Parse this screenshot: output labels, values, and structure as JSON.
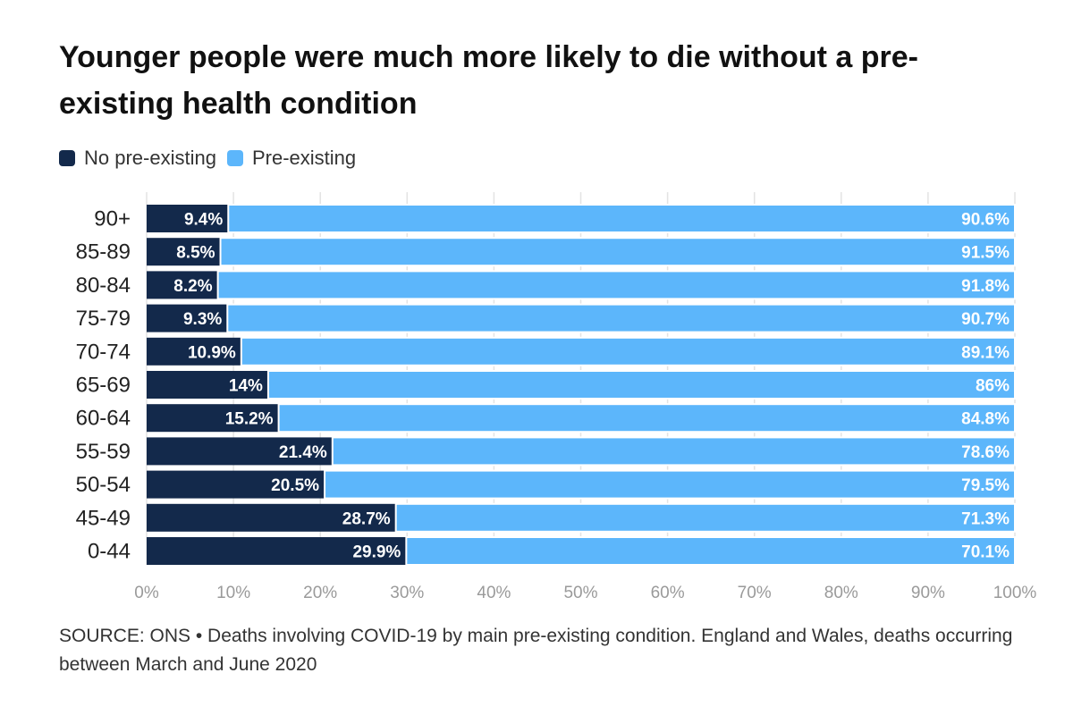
{
  "title": "Younger people were much more likely to die without a pre-existing health condition",
  "source": "SOURCE: ONS • Deaths involving COVID-19 by main pre-existing condition. England and Wales, deaths occurring between March and June 2020",
  "colors": {
    "no_pre_existing": "#13294b",
    "pre_existing": "#5cb6fb",
    "axis_text": "#9a9a9a",
    "gridline": "#e3e3e3"
  },
  "chart_data": {
    "type": "bar",
    "orientation": "horizontal",
    "stacked": true,
    "categories": [
      "90+",
      "85-89",
      "80-84",
      "75-79",
      "70-74",
      "65-69",
      "60-64",
      "55-59",
      "50-54",
      "45-49",
      "0-44"
    ],
    "series": [
      {
        "name": "No pre-existing",
        "values": [
          9.4,
          8.5,
          8.2,
          9.3,
          10.9,
          14,
          15.2,
          21.4,
          20.5,
          28.7,
          29.9
        ],
        "labels": [
          "9.4%",
          "8.5%",
          "8.2%",
          "9.3%",
          "10.9%",
          "14%",
          "15.2%",
          "21.4%",
          "20.5%",
          "28.7%",
          "29.9%"
        ]
      },
      {
        "name": "Pre-existing",
        "values": [
          90.6,
          91.5,
          91.8,
          90.7,
          89.1,
          86,
          84.8,
          78.6,
          79.5,
          71.3,
          70.1
        ],
        "labels": [
          "90.6%",
          "91.5%",
          "91.8%",
          "90.7%",
          "89.1%",
          "86%",
          "84.8%",
          "78.6%",
          "79.5%",
          "71.3%",
          "70.1%"
        ]
      }
    ],
    "xlim": [
      0,
      100
    ],
    "x_ticks": [
      "0%",
      "10%",
      "20%",
      "30%",
      "40%",
      "50%",
      "60%",
      "70%",
      "80%",
      "90%",
      "100%"
    ],
    "grid": true,
    "legend_position": "top-left"
  }
}
